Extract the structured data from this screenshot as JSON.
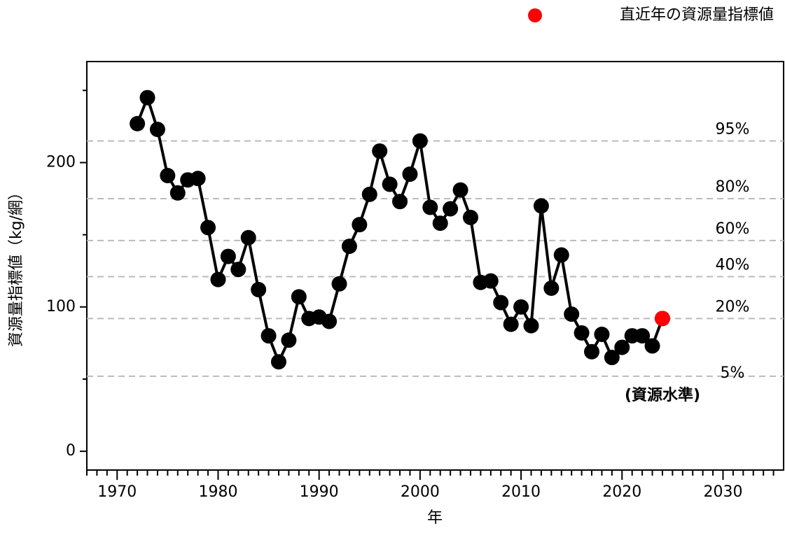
{
  "chart_data": {
    "type": "line",
    "y_label": "資源量指標値（kg/網）",
    "x_label": "年",
    "annotation": "(資源水準)",
    "series": [
      {
        "color": "#000000",
        "x": [
          1972,
          1973,
          1974,
          1975,
          1976,
          1977,
          1978,
          1979,
          1980,
          1981,
          1982,
          1983,
          1984,
          1985,
          1986,
          1987,
          1988,
          1989,
          1990,
          1991,
          1992,
          1993,
          1994,
          1995,
          1996,
          1997,
          1998,
          1999,
          2000,
          2001,
          2002,
          2003,
          2004,
          2005,
          2006,
          2007,
          2008,
          2009,
          2010,
          2011,
          2012,
          2013,
          2014,
          2015,
          2016,
          2017,
          2018,
          2019,
          2020,
          2021,
          2022,
          2023,
          2024
        ],
        "values": [
          227,
          245,
          223,
          191,
          179,
          188,
          189,
          155,
          119,
          135,
          126,
          148,
          112,
          80,
          62,
          77,
          107,
          92,
          93,
          90,
          116,
          142,
          157,
          178,
          208,
          185,
          173,
          192,
          215,
          169,
          158,
          168,
          181,
          162,
          117,
          118,
          103,
          88,
          100,
          87,
          170,
          113,
          136,
          95,
          82,
          69,
          81,
          65,
          72,
          80,
          80,
          73,
          92
        ]
      },
      {
        "name": "直近年の資源量指標値",
        "color": "#ff0000",
        "x": [
          2024
        ],
        "values": [
          92
        ]
      }
    ],
    "reference_lines": [
      {
        "value": 215,
        "label": "95%"
      },
      {
        "value": 175,
        "label": "80%"
      },
      {
        "value": 146,
        "label": "60%"
      },
      {
        "value": 121,
        "label": "40%"
      },
      {
        "value": 92,
        "label": "20%"
      },
      {
        "value": 52,
        "label": "5%"
      }
    ],
    "xlim": [
      1967,
      2036
    ],
    "ylim": [
      -13,
      270
    ],
    "xticks": [
      1970,
      1980,
      1990,
      2000,
      2010,
      2020,
      2030
    ],
    "yticks": [
      0,
      100,
      200
    ],
    "xminor": [
      1967,
      1968,
      1969,
      1971,
      1972,
      1973,
      1974,
      1975,
      1976,
      1977,
      1978,
      1979,
      1981,
      1982,
      1983,
      1984,
      1985,
      1986,
      1987,
      1988,
      1989,
      1991,
      1992,
      1993,
      1994,
      1995,
      1996,
      1997,
      1998,
      1999,
      2001,
      2002,
      2003,
      2004,
      2005,
      2006,
      2007,
      2008,
      2009,
      2011,
      2012,
      2013,
      2014,
      2015,
      2016,
      2017,
      2018,
      2019,
      2021,
      2022,
      2023,
      2024,
      2025,
      2026,
      2027,
      2028,
      2029,
      2031,
      2032,
      2033,
      2034,
      2035
    ],
    "yminor": [
      50,
      150,
      250
    ]
  }
}
